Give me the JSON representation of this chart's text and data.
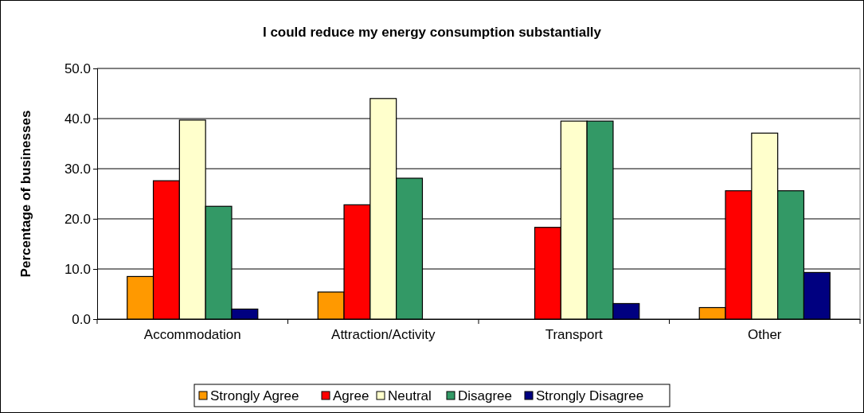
{
  "chart_data": {
    "type": "bar",
    "title": "I could reduce my energy consumption substantially",
    "ylabel": "Percentage of businesses",
    "categories": [
      "Accommodation",
      "Attraction/Activity",
      "Transport",
      "Other"
    ],
    "series": [
      {
        "name": "Strongly Agree",
        "color": "#ff9900",
        "values": [
          8.5,
          5.4,
          0,
          2.3
        ]
      },
      {
        "name": "Agree",
        "color": "#ff0000",
        "values": [
          27.6,
          22.8,
          18.3,
          25.6
        ]
      },
      {
        "name": "Neutral",
        "color": "#ffffcc",
        "values": [
          39.7,
          44.0,
          39.5,
          37.1
        ]
      },
      {
        "name": "Disagree",
        "color": "#339966",
        "values": [
          22.5,
          28.1,
          39.5,
          25.6
        ]
      },
      {
        "name": "Strongly Disagree",
        "color": "#000080",
        "values": [
          2.0,
          0,
          3.1,
          9.3
        ]
      }
    ],
    "ylim": [
      0,
      50
    ],
    "yticks": [
      {
        "value": 0,
        "label": "0.0"
      },
      {
        "value": 10,
        "label": "10.0"
      },
      {
        "value": 20,
        "label": "20.0"
      },
      {
        "value": 30,
        "label": "30.0"
      },
      {
        "value": 40,
        "label": "40.0"
      },
      {
        "value": 50,
        "label": "50.0"
      }
    ],
    "grid": "y",
    "legend": "bottom"
  }
}
